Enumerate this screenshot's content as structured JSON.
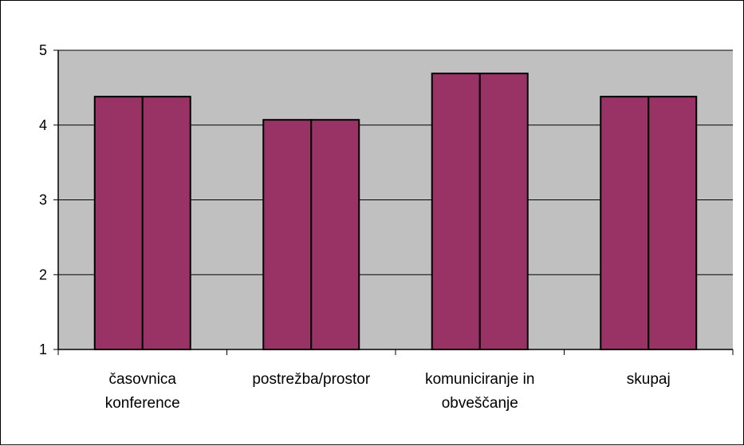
{
  "chart_data": {
    "type": "bar",
    "categories": [
      [
        "časovnica",
        "konference"
      ],
      [
        "postrežba/prostor"
      ],
      [
        "komuniciranje in",
        "obveščanje"
      ],
      [
        "skupaj"
      ]
    ],
    "series": [
      {
        "values": [
          4.38,
          4.07,
          4.69,
          4.38
        ]
      },
      {
        "values": [
          4.38,
          4.07,
          4.69,
          4.38
        ]
      }
    ],
    "ylim": [
      1,
      5
    ],
    "yticks": [
      1,
      2,
      3,
      4,
      5
    ],
    "grid": true,
    "legend": "none",
    "colors": {
      "bar": "#993366",
      "plot_background": "#c0c0c0",
      "gridline": "#000000",
      "bar_border": "#000000"
    }
  }
}
